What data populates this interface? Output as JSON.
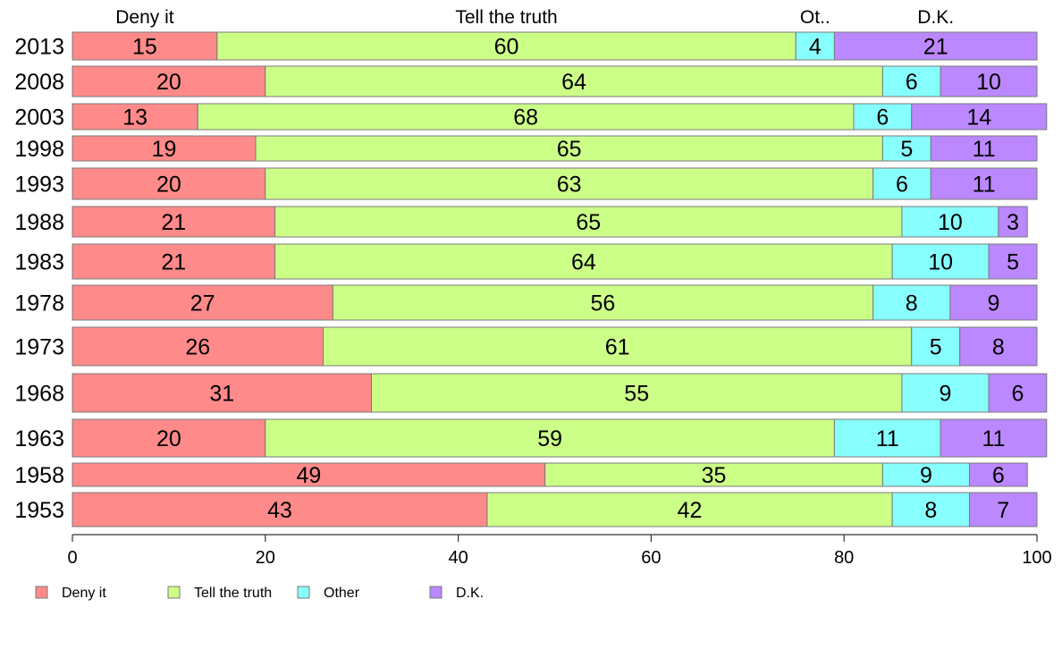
{
  "chart_data": {
    "type": "bar",
    "orientation": "horizontal",
    "stacked": true,
    "categories": [
      "2013",
      "2008",
      "2003",
      "1998",
      "1993",
      "1988",
      "1983",
      "1978",
      "1973",
      "1968",
      "1963",
      "1958",
      "1953"
    ],
    "series": [
      {
        "name": "Deny it",
        "header": "Deny it",
        "color": "#ff8a8a",
        "values": [
          15,
          20,
          13,
          19,
          20,
          21,
          21,
          27,
          26,
          31,
          20,
          49,
          43
        ]
      },
      {
        "name": "Tell the truth",
        "header": "Tell the truth",
        "color": "#ccff88",
        "values": [
          60,
          64,
          68,
          65,
          63,
          65,
          64,
          56,
          61,
          55,
          59,
          35,
          42
        ]
      },
      {
        "name": "Other",
        "header": "Ot..",
        "color": "#88ffff",
        "values": [
          4,
          6,
          6,
          5,
          6,
          10,
          10,
          8,
          5,
          9,
          11,
          9,
          8
        ]
      },
      {
        "name": "D.K.",
        "header": "D.K.",
        "color": "#bb88ff",
        "values": [
          21,
          10,
          14,
          11,
          11,
          3,
          5,
          9,
          8,
          6,
          11,
          6,
          7
        ]
      }
    ],
    "xlim": [
      0,
      100
    ],
    "xticks": [
      0,
      20,
      40,
      60,
      80,
      100
    ],
    "title": "",
    "xlabel": "",
    "ylabel": "",
    "legend_position": "bottom-left",
    "grid": false
  }
}
